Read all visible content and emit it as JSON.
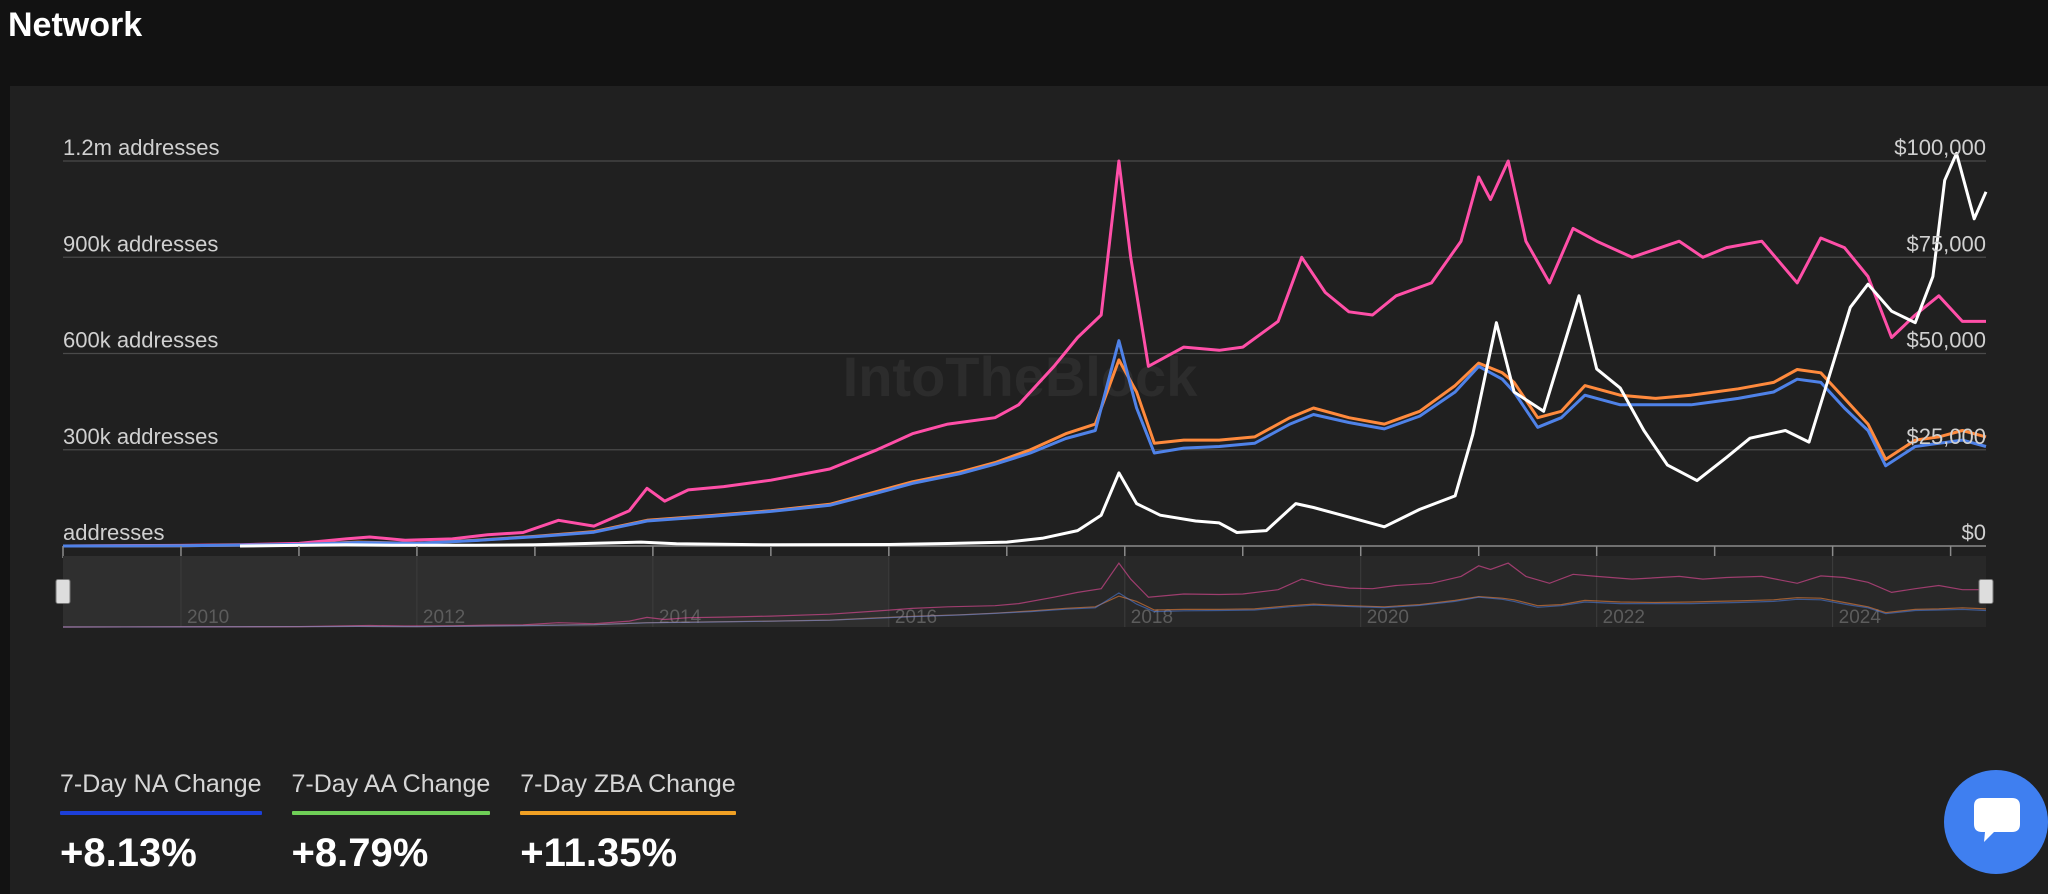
{
  "page": {
    "title": "Network"
  },
  "watermark": "IntoTheBlock",
  "stats": [
    {
      "label": "7-Day NA Change",
      "value": "+8.13%",
      "color": "#1c3fd9"
    },
    {
      "label": "7-Day AA Change",
      "value": "+8.79%",
      "color": "#6fcf57"
    },
    {
      "label": "7-Day ZBA Change",
      "value": "+11.35%",
      "color": "#f0a024"
    }
  ],
  "chat": {
    "icon": "chat-bubble-icon"
  },
  "chart_data": {
    "type": "line",
    "x_range": [
      2009.0,
      2025.3
    ],
    "x_ticks": [
      "2009",
      "2010",
      "2011",
      "2012",
      "2013",
      "2014",
      "2015",
      "2016",
      "2017",
      "2018",
      "2019",
      "2020",
      "2021",
      "2022",
      "2023",
      "2024",
      "2025"
    ],
    "y_left": {
      "range": [
        0,
        1200000
      ],
      "ticks": [
        0,
        300000,
        600000,
        900000,
        1200000
      ],
      "tick_labels": [
        "addresses",
        "300k addresses",
        "600k addresses",
        "900k addresses",
        "1.2m addresses"
      ]
    },
    "y_right": {
      "range": [
        0,
        100000
      ],
      "ticks": [
        0,
        25000,
        50000,
        75000,
        100000
      ],
      "tick_labels": [
        "$0",
        "$25,000",
        "$50,000",
        "$75,000",
        "$100,000"
      ]
    },
    "grid": true,
    "series": [
      {
        "color": "#ff4fa8",
        "axis": "left",
        "points": [
          [
            2009.0,
            0
          ],
          [
            2010.0,
            2000
          ],
          [
            2010.5,
            4000
          ],
          [
            2011.0,
            8000
          ],
          [
            2011.4,
            22000
          ],
          [
            2011.6,
            28000
          ],
          [
            2011.9,
            18000
          ],
          [
            2012.3,
            22000
          ],
          [
            2012.6,
            35000
          ],
          [
            2012.9,
            42000
          ],
          [
            2013.2,
            80000
          ],
          [
            2013.5,
            62000
          ],
          [
            2013.8,
            110000
          ],
          [
            2013.95,
            180000
          ],
          [
            2014.1,
            140000
          ],
          [
            2014.3,
            175000
          ],
          [
            2014.6,
            185000
          ],
          [
            2015.0,
            205000
          ],
          [
            2015.5,
            240000
          ],
          [
            2015.9,
            300000
          ],
          [
            2016.2,
            350000
          ],
          [
            2016.5,
            380000
          ],
          [
            2016.9,
            400000
          ],
          [
            2017.1,
            440000
          ],
          [
            2017.4,
            560000
          ],
          [
            2017.6,
            650000
          ],
          [
            2017.8,
            720000
          ],
          [
            2017.95,
            1200000
          ],
          [
            2018.05,
            900000
          ],
          [
            2018.2,
            560000
          ],
          [
            2018.5,
            620000
          ],
          [
            2018.8,
            610000
          ],
          [
            2019.0,
            620000
          ],
          [
            2019.3,
            700000
          ],
          [
            2019.5,
            900000
          ],
          [
            2019.7,
            790000
          ],
          [
            2019.9,
            730000
          ],
          [
            2020.1,
            720000
          ],
          [
            2020.3,
            780000
          ],
          [
            2020.6,
            820000
          ],
          [
            2020.85,
            950000
          ],
          [
            2021.0,
            1150000
          ],
          [
            2021.1,
            1080000
          ],
          [
            2021.25,
            1200000
          ],
          [
            2021.4,
            950000
          ],
          [
            2021.6,
            820000
          ],
          [
            2021.8,
            990000
          ],
          [
            2022.0,
            950000
          ],
          [
            2022.3,
            900000
          ],
          [
            2022.7,
            950000
          ],
          [
            2022.9,
            900000
          ],
          [
            2023.1,
            930000
          ],
          [
            2023.4,
            950000
          ],
          [
            2023.7,
            820000
          ],
          [
            2023.9,
            960000
          ],
          [
            2024.1,
            930000
          ],
          [
            2024.3,
            840000
          ],
          [
            2024.5,
            650000
          ],
          [
            2024.7,
            720000
          ],
          [
            2024.9,
            780000
          ],
          [
            2025.1,
            700000
          ],
          [
            2025.3,
            700000
          ]
        ]
      },
      {
        "color": "#ff8a3d",
        "axis": "left",
        "points": [
          [
            2009.0,
            0
          ],
          [
            2010.0,
            1000
          ],
          [
            2011.0,
            5000
          ],
          [
            2011.5,
            12000
          ],
          [
            2012.0,
            8000
          ],
          [
            2012.5,
            18000
          ],
          [
            2013.0,
            30000
          ],
          [
            2013.5,
            45000
          ],
          [
            2013.95,
            80000
          ],
          [
            2014.5,
            95000
          ],
          [
            2015.0,
            110000
          ],
          [
            2015.5,
            130000
          ],
          [
            2015.9,
            170000
          ],
          [
            2016.2,
            200000
          ],
          [
            2016.6,
            230000
          ],
          [
            2016.9,
            260000
          ],
          [
            2017.2,
            300000
          ],
          [
            2017.5,
            350000
          ],
          [
            2017.75,
            380000
          ],
          [
            2017.95,
            580000
          ],
          [
            2018.1,
            480000
          ],
          [
            2018.25,
            320000
          ],
          [
            2018.5,
            330000
          ],
          [
            2018.8,
            330000
          ],
          [
            2019.1,
            340000
          ],
          [
            2019.4,
            400000
          ],
          [
            2019.6,
            430000
          ],
          [
            2019.9,
            400000
          ],
          [
            2020.2,
            380000
          ],
          [
            2020.5,
            420000
          ],
          [
            2020.8,
            500000
          ],
          [
            2021.0,
            570000
          ],
          [
            2021.2,
            540000
          ],
          [
            2021.3,
            510000
          ],
          [
            2021.5,
            400000
          ],
          [
            2021.7,
            420000
          ],
          [
            2021.9,
            500000
          ],
          [
            2022.2,
            470000
          ],
          [
            2022.5,
            460000
          ],
          [
            2022.8,
            470000
          ],
          [
            2023.0,
            480000
          ],
          [
            2023.2,
            490000
          ],
          [
            2023.5,
            510000
          ],
          [
            2023.7,
            550000
          ],
          [
            2023.9,
            540000
          ],
          [
            2024.1,
            460000
          ],
          [
            2024.3,
            380000
          ],
          [
            2024.45,
            270000
          ],
          [
            2024.7,
            330000
          ],
          [
            2024.9,
            340000
          ],
          [
            2025.1,
            360000
          ],
          [
            2025.3,
            340000
          ]
        ]
      },
      {
        "color": "#4f82e8",
        "axis": "left",
        "points": [
          [
            2009.0,
            0
          ],
          [
            2010.0,
            1000
          ],
          [
            2011.0,
            5000
          ],
          [
            2011.5,
            11000
          ],
          [
            2012.0,
            8000
          ],
          [
            2012.5,
            17000
          ],
          [
            2013.0,
            29000
          ],
          [
            2013.5,
            43000
          ],
          [
            2013.95,
            78000
          ],
          [
            2014.5,
            93000
          ],
          [
            2015.0,
            108000
          ],
          [
            2015.5,
            127000
          ],
          [
            2015.9,
            165000
          ],
          [
            2016.2,
            195000
          ],
          [
            2016.6,
            225000
          ],
          [
            2016.9,
            255000
          ],
          [
            2017.2,
            290000
          ],
          [
            2017.5,
            335000
          ],
          [
            2017.75,
            360000
          ],
          [
            2017.95,
            640000
          ],
          [
            2018.1,
            430000
          ],
          [
            2018.25,
            290000
          ],
          [
            2018.5,
            305000
          ],
          [
            2018.8,
            310000
          ],
          [
            2019.1,
            320000
          ],
          [
            2019.4,
            380000
          ],
          [
            2019.6,
            410000
          ],
          [
            2019.9,
            385000
          ],
          [
            2020.2,
            365000
          ],
          [
            2020.5,
            405000
          ],
          [
            2020.8,
            480000
          ],
          [
            2021.0,
            560000
          ],
          [
            2021.2,
            520000
          ],
          [
            2021.3,
            480000
          ],
          [
            2021.5,
            370000
          ],
          [
            2021.7,
            400000
          ],
          [
            2021.9,
            470000
          ],
          [
            2022.2,
            440000
          ],
          [
            2022.5,
            440000
          ],
          [
            2022.8,
            440000
          ],
          [
            2023.0,
            450000
          ],
          [
            2023.2,
            460000
          ],
          [
            2023.5,
            480000
          ],
          [
            2023.7,
            520000
          ],
          [
            2023.9,
            510000
          ],
          [
            2024.1,
            430000
          ],
          [
            2024.3,
            360000
          ],
          [
            2024.45,
            250000
          ],
          [
            2024.7,
            310000
          ],
          [
            2024.9,
            320000
          ],
          [
            2025.1,
            330000
          ],
          [
            2025.3,
            310000
          ]
        ]
      },
      {
        "color": "#ffffff",
        "axis": "right",
        "points": [
          [
            2010.5,
            0
          ],
          [
            2011.4,
            300
          ],
          [
            2011.8,
            200
          ],
          [
            2012.5,
            200
          ],
          [
            2013.0,
            300
          ],
          [
            2013.9,
            1000
          ],
          [
            2014.2,
            600
          ],
          [
            2015.0,
            300
          ],
          [
            2016.0,
            400
          ],
          [
            2016.5,
            650
          ],
          [
            2017.0,
            1000
          ],
          [
            2017.3,
            2000
          ],
          [
            2017.6,
            4000
          ],
          [
            2017.8,
            8000
          ],
          [
            2017.95,
            19000
          ],
          [
            2018.1,
            11000
          ],
          [
            2018.3,
            8000
          ],
          [
            2018.6,
            6500
          ],
          [
            2018.8,
            6000
          ],
          [
            2018.95,
            3500
          ],
          [
            2019.2,
            4000
          ],
          [
            2019.45,
            11000
          ],
          [
            2019.6,
            10000
          ],
          [
            2019.9,
            7500
          ],
          [
            2020.2,
            5000
          ],
          [
            2020.5,
            9500
          ],
          [
            2020.8,
            13000
          ],
          [
            2020.95,
            29000
          ],
          [
            2021.15,
            58000
          ],
          [
            2021.3,
            40000
          ],
          [
            2021.55,
            35000
          ],
          [
            2021.85,
            65000
          ],
          [
            2022.0,
            46000
          ],
          [
            2022.2,
            41000
          ],
          [
            2022.4,
            30000
          ],
          [
            2022.6,
            21000
          ],
          [
            2022.85,
            17000
          ],
          [
            2023.1,
            23000
          ],
          [
            2023.3,
            28000
          ],
          [
            2023.6,
            30000
          ],
          [
            2023.8,
            27000
          ],
          [
            2023.95,
            42000
          ],
          [
            2024.15,
            62000
          ],
          [
            2024.3,
            68000
          ],
          [
            2024.5,
            61000
          ],
          [
            2024.7,
            58000
          ],
          [
            2024.85,
            70000
          ],
          [
            2024.95,
            95000
          ],
          [
            2025.05,
            102000
          ],
          [
            2025.2,
            85000
          ],
          [
            2025.3,
            92000
          ]
        ]
      }
    ],
    "navigator": {
      "labels": [
        "2010",
        "2012",
        "2014",
        "2016",
        "2018",
        "2020",
        "2022",
        "2024"
      ]
    }
  }
}
